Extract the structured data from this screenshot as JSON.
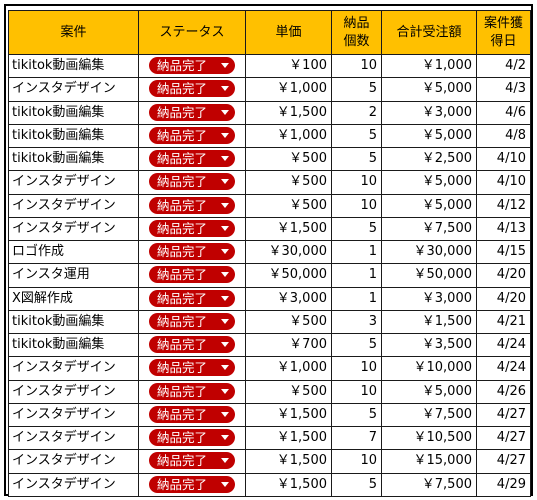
{
  "table": {
    "headers": {
      "name": "案件",
      "status": "ステータス",
      "unit_price": "単価",
      "quantity_line1": "納品",
      "quantity_line2": "個数",
      "total": "合計受注額",
      "date_line1": "案件獲",
      "date_line2": "得日"
    },
    "rows": [
      {
        "name": "tikitok動画編集",
        "status": "納品完了",
        "unit_price": "￥100",
        "quantity": "10",
        "total": "￥1,000",
        "date": "4/2"
      },
      {
        "name": "インスタデザイン",
        "status": "納品完了",
        "unit_price": "￥1,000",
        "quantity": "5",
        "total": "￥5,000",
        "date": "4/3"
      },
      {
        "name": "tikitok動画編集",
        "status": "納品完了",
        "unit_price": "￥1,500",
        "quantity": "2",
        "total": "￥3,000",
        "date": "4/6"
      },
      {
        "name": "tikitok動画編集",
        "status": "納品完了",
        "unit_price": "￥1,000",
        "quantity": "5",
        "total": "￥5,000",
        "date": "4/8"
      },
      {
        "name": "tikitok動画編集",
        "status": "納品完了",
        "unit_price": "￥500",
        "quantity": "5",
        "total": "￥2,500",
        "date": "4/10"
      },
      {
        "name": "インスタデザイン",
        "status": "納品完了",
        "unit_price": "￥500",
        "quantity": "10",
        "total": "￥5,000",
        "date": "4/10"
      },
      {
        "name": "インスタデザイン",
        "status": "納品完了",
        "unit_price": "￥500",
        "quantity": "10",
        "total": "￥5,000",
        "date": "4/12"
      },
      {
        "name": "インスタデザイン",
        "status": "納品完了",
        "unit_price": "￥1,500",
        "quantity": "5",
        "total": "￥7,500",
        "date": "4/13"
      },
      {
        "name": "ロゴ作成",
        "status": "納品完了",
        "unit_price": "￥30,000",
        "quantity": "1",
        "total": "￥30,000",
        "date": "4/15"
      },
      {
        "name": "インスタ運用",
        "status": "納品完了",
        "unit_price": "￥50,000",
        "quantity": "1",
        "total": "￥50,000",
        "date": "4/20"
      },
      {
        "name": "X図解作成",
        "status": "納品完了",
        "unit_price": "￥3,000",
        "quantity": "1",
        "total": "￥3,000",
        "date": "4/20"
      },
      {
        "name": "tikitok動画編集",
        "status": "納品完了",
        "unit_price": "￥500",
        "quantity": "3",
        "total": "￥1,500",
        "date": "4/21"
      },
      {
        "name": "tikitok動画編集",
        "status": "納品完了",
        "unit_price": "￥700",
        "quantity": "5",
        "total": "￥3,500",
        "date": "4/24"
      },
      {
        "name": "インスタデザイン",
        "status": "納品完了",
        "unit_price": "￥1,000",
        "quantity": "10",
        "total": "￥10,000",
        "date": "4/24"
      },
      {
        "name": "インスタデザイン",
        "status": "納品完了",
        "unit_price": "￥500",
        "quantity": "10",
        "total": "￥5,000",
        "date": "4/26"
      },
      {
        "name": "インスタデザイン",
        "status": "納品完了",
        "unit_price": "￥1,500",
        "quantity": "5",
        "total": "￥7,500",
        "date": "4/27"
      },
      {
        "name": "インスタデザイン",
        "status": "納品完了",
        "unit_price": "￥1,500",
        "quantity": "7",
        "total": "￥10,500",
        "date": "4/27"
      },
      {
        "name": "インスタデザイン",
        "status": "納品完了",
        "unit_price": "￥1,500",
        "quantity": "10",
        "total": "￥15,000",
        "date": "4/27"
      },
      {
        "name": "インスタデザイン",
        "status": "納品完了",
        "unit_price": "￥1,500",
        "quantity": "5",
        "total": "￥7,500",
        "date": "4/29"
      }
    ]
  },
  "colors": {
    "header_bg": "#ffc000",
    "status_pill_bg": "#c00000",
    "status_pill_text": "#ffffff"
  },
  "icons": {
    "status_dropdown": "chevron-down-icon"
  }
}
